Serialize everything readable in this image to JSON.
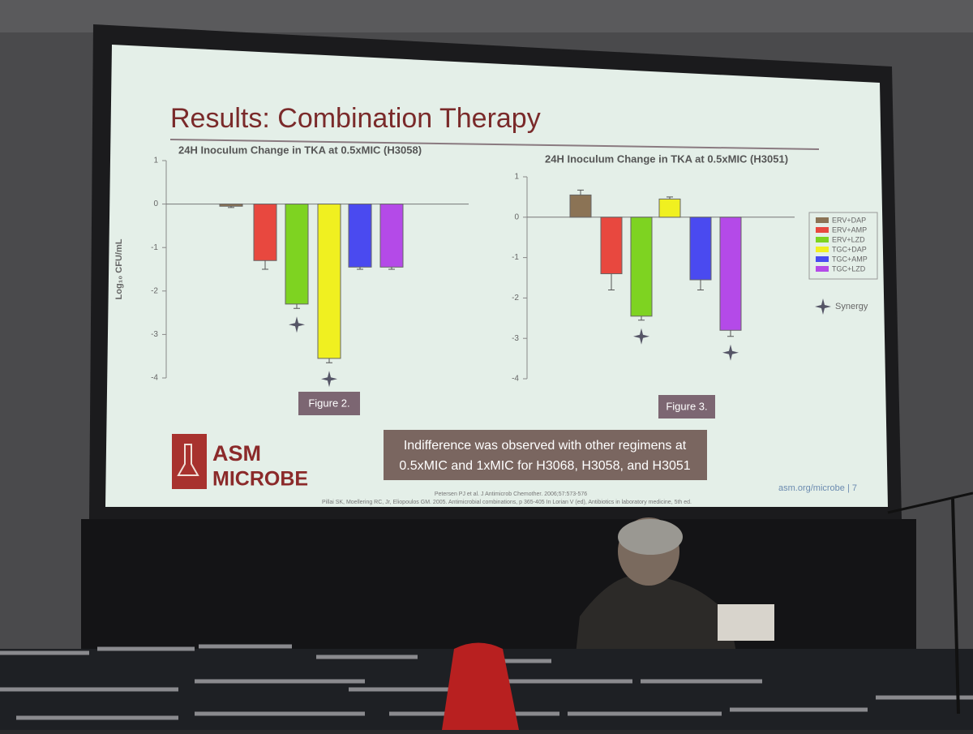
{
  "slide": {
    "title": "Results: Combination Therapy",
    "figure_labels": [
      "Figure 2.",
      "Figure 3."
    ],
    "note": [
      "Indifference was observed with other regimens at",
      "0.5xMIC and 1xMIC for H3068, H3058, and H3051"
    ],
    "logo": [
      "ASM",
      "MICROBE"
    ],
    "url": "asm.org/microbe | 7",
    "references": [
      "Petersen PJ et al. J Antimicrob Chemother. 2006;57:573-576",
      "Pillai SK, Moellering RC, Jr, Eliopoulos GM. 2005. Antimicrobial combinations, p 365-405 In Lorian V (ed), Antibiotics in laboratory medicine, 5th ed."
    ]
  },
  "chart_data": [
    {
      "type": "bar",
      "title": "24H Inoculum Change in TKA at 0.5xMIC (H3058)",
      "y_label": "Log₁₀ CFU/mL",
      "values": [
        -0.05,
        -1.3,
        -2.3,
        -3.55,
        -1.45,
        -1.45
      ],
      "errors": [
        0.03,
        0.2,
        0.1,
        0.1,
        0.05,
        0.05
      ],
      "colors": [
        "#8b7355",
        "#e8483f",
        "#7ed321",
        "#f0f020",
        "#4a4af0",
        "#b44ae8"
      ],
      "synergy": [
        false,
        false,
        true,
        true,
        false,
        false
      ],
      "ylim": [
        -4,
        1
      ],
      "yticks": [
        1,
        0,
        -1,
        -2,
        -3,
        -4
      ]
    },
    {
      "type": "bar",
      "title": "24H Inoculum Change in TKA at 0.5xMIC (H3051)",
      "categories": [
        "ERV+DAP",
        "ERV+AMP",
        "ERV+LZD",
        "TGC+DAP",
        "TGC+AMP",
        "TGC+LZD"
      ],
      "values": [
        0.55,
        -1.4,
        -2.45,
        0.45,
        -1.55,
        -2.8
      ],
      "errors": [
        0.12,
        0.4,
        0.1,
        0.05,
        0.25,
        0.15
      ],
      "colors": [
        "#8b7355",
        "#e8483f",
        "#7ed321",
        "#f0f020",
        "#4a4af0",
        "#b44ae8"
      ],
      "synergy": [
        false,
        false,
        true,
        false,
        false,
        true
      ],
      "synergy_label": "Synergy",
      "ylim": [
        -4,
        1
      ],
      "yticks": [
        1,
        0,
        -1,
        -2,
        -3,
        -4
      ]
    }
  ]
}
